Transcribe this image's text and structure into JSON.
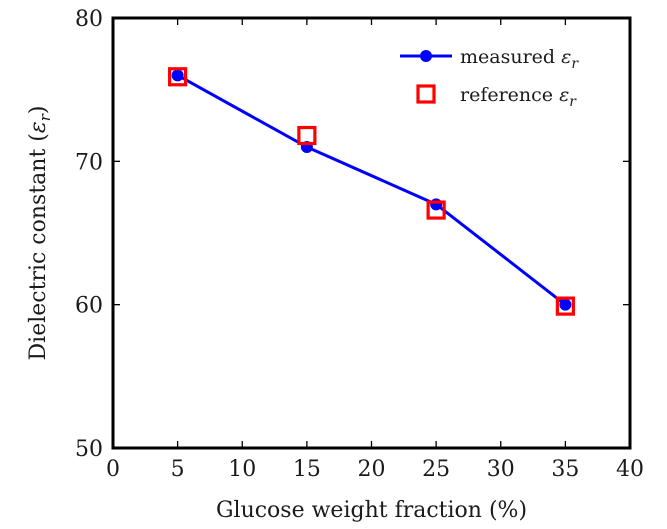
{
  "chart_data": {
    "type": "line",
    "title": "",
    "xlabel": "Glucose weight fraction (%)",
    "ylabel_prefix": "Dielectric constant (",
    "ylabel_symbol": "ε",
    "ylabel_sub": "r",
    "ylabel_suffix": ")",
    "xlim": [
      0,
      40
    ],
    "ylim": [
      50,
      80
    ],
    "xticks": [
      0,
      5,
      10,
      15,
      20,
      25,
      30,
      35,
      40
    ],
    "yticks": [
      50,
      60,
      70,
      80
    ],
    "grid": false,
    "legend_position": "top-right",
    "series": [
      {
        "name_text": "measured",
        "name_symbol": "ε",
        "name_sub": "r",
        "style": "line-with-circle-markers",
        "color": "#0000ff",
        "x": [
          5,
          15,
          25,
          35
        ],
        "y": [
          76,
          71,
          67,
          60
        ]
      },
      {
        "name_text": "reference",
        "name_symbol": "ε",
        "name_sub": "r",
        "style": "square-markers",
        "color": "#ff0000",
        "x": [
          5,
          15,
          25,
          35
        ],
        "y": [
          75.9,
          71.8,
          66.6,
          59.9
        ]
      }
    ]
  }
}
